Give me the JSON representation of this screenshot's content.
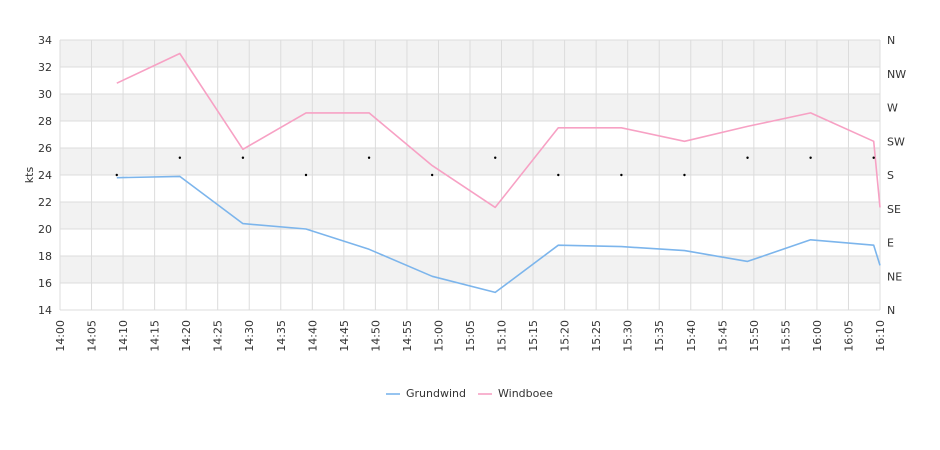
{
  "chart_data": {
    "type": "line",
    "ylabel": "kts",
    "ylim": [
      14,
      34
    ],
    "yticks": [
      14,
      16,
      18,
      20,
      22,
      24,
      26,
      28,
      30,
      32,
      34
    ],
    "x_range": [
      "14:00",
      "16:10"
    ],
    "x_ticks": [
      "14:00",
      "14:05",
      "14:10",
      "14:15",
      "14:20",
      "14:25",
      "14:30",
      "14:35",
      "14:40",
      "14:45",
      "14:50",
      "14:55",
      "15:00",
      "15:05",
      "15:10",
      "15:15",
      "15:20",
      "15:25",
      "15:30",
      "15:35",
      "15:40",
      "15:45",
      "15:50",
      "15:55",
      "16:00",
      "16:05",
      "16:10"
    ],
    "right_axis": {
      "labels": [
        "N",
        "NE",
        "E",
        "SE",
        "S",
        "SW",
        "W",
        "NW",
        "N"
      ],
      "range_degrees": [
        0,
        360
      ]
    },
    "grid": true,
    "legend_position": "bottom-center",
    "series": [
      {
        "name": "Grundwind",
        "color": "#7cb5ec",
        "x": [
          "14:09",
          "14:19",
          "14:29",
          "14:39",
          "14:49",
          "14:59",
          "15:09",
          "15:19",
          "15:29",
          "15:39",
          "15:49",
          "15:59",
          "16:09",
          "16:10"
        ],
        "values": [
          23.8,
          23.9,
          20.4,
          20.0,
          18.5,
          16.5,
          15.3,
          18.8,
          18.7,
          18.4,
          17.6,
          19.2,
          18.8,
          17.3
        ]
      },
      {
        "name": "Windboee",
        "color": "#f7a1c4",
        "x": [
          "14:09",
          "14:19",
          "14:29",
          "14:39",
          "14:49",
          "14:59",
          "15:09",
          "15:19",
          "15:29",
          "15:39",
          "15:49",
          "15:59",
          "16:09",
          "16:10"
        ],
        "values": [
          30.8,
          33.0,
          25.9,
          28.6,
          28.6,
          24.7,
          21.6,
          27.5,
          27.5,
          26.5,
          27.6,
          28.6,
          26.5,
          21.6
        ]
      }
    ],
    "direction_series": {
      "x": [
        "14:09",
        "14:19",
        "14:29",
        "14:39",
        "14:49",
        "14:59",
        "15:09",
        "15:19",
        "15:29",
        "15:39",
        "15:49",
        "15:59",
        "16:09"
      ],
      "values": [
        180,
        203,
        203,
        180,
        203,
        180,
        203,
        180,
        180,
        180,
        203,
        203,
        203
      ]
    }
  }
}
